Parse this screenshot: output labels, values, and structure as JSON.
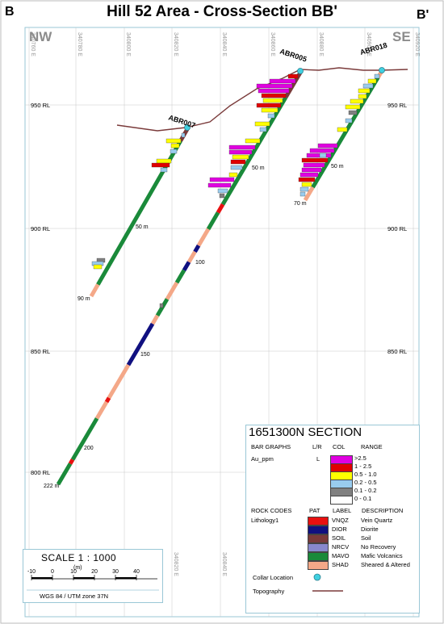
{
  "title": "Hill 52 Area - Cross-Section BB'",
  "corner_left": "B",
  "corner_right": "B'",
  "dir_left": "NW",
  "dir_right": "SE",
  "easting_ticks_top": [
    "340760 E",
    "340780 E",
    "340800 E",
    "340820 E",
    "340840 E",
    "340860 E",
    "340880 E",
    "340900 E",
    "340920 E"
  ],
  "easting_ticks_bottom": [
    "340820 E",
    "340840 E"
  ],
  "rl_labels": [
    "950 RL",
    "900 RL",
    "850 RL",
    "800 RL"
  ],
  "holes": [
    {
      "name": "ABR007",
      "depth_labels": [
        "50 m",
        "90 m"
      ]
    },
    {
      "name": "ABR005",
      "depth_labels": [
        "50 m",
        "100",
        "150",
        "200",
        "222 m"
      ]
    },
    {
      "name": "ABR018",
      "depth_labels": [
        "50 m",
        "70 m"
      ]
    }
  ],
  "legend": {
    "section_title": "1651300N  SECTION",
    "bar_graphs_label": "BAR GRAPHS",
    "lr_label": "L/R",
    "col_label": "COL",
    "range_label": "RANGE",
    "bar_field": "Au_ppm",
    "bar_side": "L",
    "ranges": [
      {
        "label": ">2.5",
        "color": "#e000e0"
      },
      {
        "label": "1 - 2.5",
        "color": "#e00000"
      },
      {
        "label": "0.5 - 1.0",
        "color": "#ffff00"
      },
      {
        "label": "0.2 - 0.5",
        "color": "#99ccee"
      },
      {
        "label": "0.1 - 0.2",
        "color": "#808080"
      },
      {
        "label": "0 - 0.1",
        "color": "#ffffff"
      }
    ],
    "rock_codes_label": "ROCK CODES",
    "pat_label": "PAT",
    "lbl_label": "LABEL",
    "desc_label": "DESCRIPTION",
    "rock_field": "Lithology1",
    "rocks": [
      {
        "code": "VNQZ",
        "desc": "Vein Quartz",
        "color": "#e81010"
      },
      {
        "code": "DIOR",
        "desc": "Diorite",
        "color": "#101080"
      },
      {
        "code": "SOIL",
        "desc": "Soil",
        "color": "#7a3a3a"
      },
      {
        "code": "NRCV",
        "desc": "No Recovery",
        "color": "#8888cc"
      },
      {
        "code": "MAVO",
        "desc": "Mafic Volcanics",
        "color": "#1a8a3a"
      },
      {
        "code": "SHAD",
        "desc": "Sheared & Altered",
        "color": "#f4a888"
      }
    ],
    "collar_label": "Collar Location",
    "topo_label": "Topography",
    "collar_color": "#40d0e0",
    "topo_color": "#7a3a3a"
  },
  "scale": {
    "title": "SCALE  1 : 1000",
    "unit": "(m)",
    "ticks": [
      "-10",
      "0",
      "10",
      "20",
      "30",
      "40"
    ],
    "projection": "WGS 84 / UTM zone 37N"
  }
}
